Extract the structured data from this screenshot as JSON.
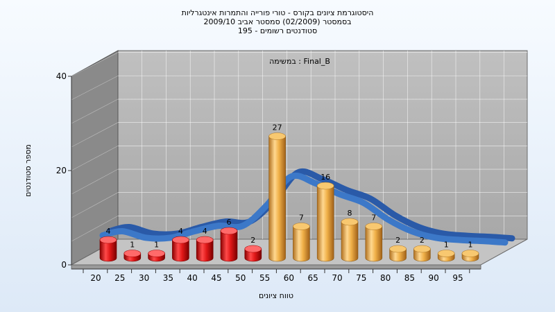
{
  "chart_data": {
    "type": "bar",
    "title_lines": [
      "היסטוגרמת ציונים בקורס - טורי פורייה והתמרות אינטגרליות",
      "בסמסטר  (02/2009)  סמסטר אביב 2009/10",
      "סטודנטים רשומים - 195"
    ],
    "annotation": "במשימה : Final_B",
    "xlabel": "טווח ציונים",
    "ylabel": "מספר סטודנטים",
    "ylim": [
      0,
      40
    ],
    "yticks": [
      "0",
      "20",
      "40"
    ],
    "categories": [
      "20",
      "25",
      "30",
      "35",
      "40",
      "45",
      "50",
      "55",
      "60",
      "65",
      "70",
      "75",
      "80",
      "85",
      "90",
      "95"
    ],
    "values": [
      4,
      1,
      1,
      4,
      4,
      6,
      2,
      27,
      7,
      16,
      8,
      7,
      2,
      2,
      1,
      1
    ],
    "data_labels": [
      "4",
      "1",
      "1",
      "4",
      "4",
      "6",
      "2",
      "27",
      "7",
      "16",
      "8",
      "7",
      "2",
      "2",
      "1",
      "1"
    ],
    "grid": true,
    "colors": {
      "fail_bars": "#e01818",
      "pass_bars": "#f0b048",
      "curve": "#3c78c8",
      "wall": "#b4b4b4",
      "side_wall": "#8a8a8a"
    },
    "fail_threshold_index": 7
  }
}
